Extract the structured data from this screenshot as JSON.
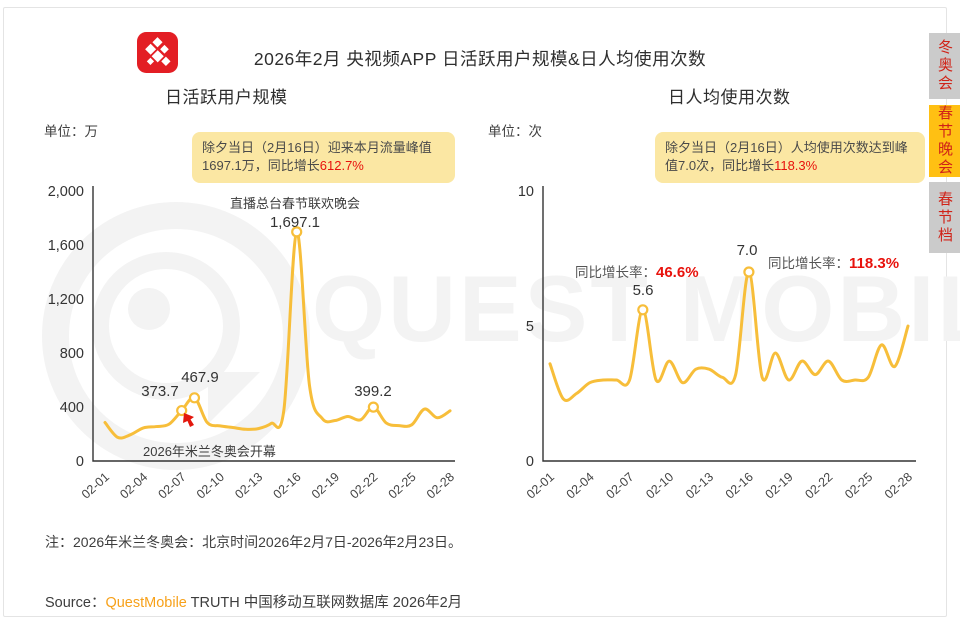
{
  "page": {
    "title": "2026年2月 央视频APP 日活跃用户规模&日人均使用次数",
    "note": "注：2026年米兰冬奥会：北京时间2026年2月7日-2026年2月23日。",
    "source_prefix": "Source：",
    "source_brand": "QuestMobile",
    "source_suffix": " TRUTH 中国移动互联网数据库 2026年2月",
    "watermark_text": "QUEST MOBILE"
  },
  "side_tabs": [
    {
      "label": "冬奥会",
      "active": false
    },
    {
      "label": "春节晚会",
      "active": true
    },
    {
      "label": "春节档",
      "active": false
    }
  ],
  "colors": {
    "line": "#F7BE3A",
    "callout_bg": "#FBE7A3",
    "highlight_red": "#E8120C",
    "tab_active_bg": "#FFC013",
    "tab_inactive_bg": "#CBCBCB",
    "tab_text_red": "#D02318",
    "brand_orange": "#F7A11A",
    "logo_red": "#E31E24"
  },
  "chart_data": [
    {
      "type": "line",
      "title": "日活跃用户规模",
      "unit_label": "单位：万",
      "callout": {
        "text": "除夕当日（2月16日）迎来本月流量峰值1697.1万，同比增长",
        "highlight": "612.7%"
      },
      "x": [
        "02-01",
        "02-02",
        "02-03",
        "02-04",
        "02-05",
        "02-06",
        "02-07",
        "02-08",
        "02-09",
        "02-10",
        "02-11",
        "02-12",
        "02-13",
        "02-14",
        "02-15",
        "02-16",
        "02-17",
        "02-18",
        "02-19",
        "02-20",
        "02-21",
        "02-22",
        "02-23",
        "02-24",
        "02-25",
        "02-26",
        "02-27",
        "02-28"
      ],
      "x_tick_every": 3,
      "values": [
        285,
        175,
        195,
        245,
        255,
        272,
        373.7,
        467.9,
        285,
        260,
        248,
        235,
        240,
        278,
        380,
        1697.1,
        560,
        315,
        300,
        330,
        305,
        399.2,
        282,
        262,
        268,
        385,
        320,
        372
      ],
      "ylim": [
        0,
        2000
      ],
      "y_ticks": [
        0,
        400,
        800,
        1200,
        1600,
        2000
      ],
      "y_tick_labels": [
        "0",
        "400",
        "800",
        "1,200",
        "1,600",
        "2,000"
      ],
      "line_color": "#F7BE3A",
      "grid": false,
      "marked_points": [
        {
          "date": "02-07",
          "value": 373.7,
          "label": "373.7"
        },
        {
          "date": "02-08",
          "value": 467.9,
          "label": "467.9"
        },
        {
          "date": "02-16",
          "value": 1697.1,
          "label": "1,697.1",
          "annotation": "直播总台春节联欢晚会"
        },
        {
          "date": "02-22",
          "value": 399.2,
          "label": "399.2"
        }
      ],
      "event_annotation": {
        "text": "2026年米兰冬奥会开幕"
      }
    },
    {
      "type": "line",
      "title": "日人均使用次数",
      "unit_label": "单位：次",
      "callout": {
        "text": "除夕当日（2月16日）人均使用次数达到峰值7.0次，同比增长",
        "highlight": "118.3%"
      },
      "x": [
        "02-01",
        "02-02",
        "02-03",
        "02-04",
        "02-05",
        "02-06",
        "02-07",
        "02-08",
        "02-09",
        "02-10",
        "02-11",
        "02-12",
        "02-13",
        "02-14",
        "02-15",
        "02-16",
        "02-17",
        "02-18",
        "02-19",
        "02-20",
        "02-21",
        "02-22",
        "02-23",
        "02-24",
        "02-25",
        "02-26",
        "02-27",
        "02-28"
      ],
      "x_tick_every": 3,
      "values": [
        3.6,
        2.3,
        2.5,
        2.9,
        3.0,
        3.0,
        3.0,
        5.6,
        3.0,
        3.7,
        2.9,
        3.4,
        3.4,
        3.1,
        3.2,
        7.0,
        3.1,
        4.0,
        3.0,
        3.7,
        3.2,
        3.7,
        3.0,
        3.0,
        3.1,
        4.3,
        3.5,
        5.0
      ],
      "ylim": [
        0,
        10
      ],
      "y_ticks": [
        0,
        5,
        10
      ],
      "y_tick_labels": [
        "0",
        "5",
        "10"
      ],
      "line_color": "#F7BE3A",
      "grid": false,
      "marked_points": [
        {
          "date": "02-08",
          "value": 5.6,
          "label": "5.6"
        },
        {
          "date": "02-16",
          "value": 7.0,
          "label": "7.0"
        }
      ],
      "growth_annotations": [
        {
          "prefix": "同比增长率：",
          "value": "46.6%"
        },
        {
          "prefix": "同比增长率：",
          "value": "118.3%"
        }
      ]
    }
  ]
}
